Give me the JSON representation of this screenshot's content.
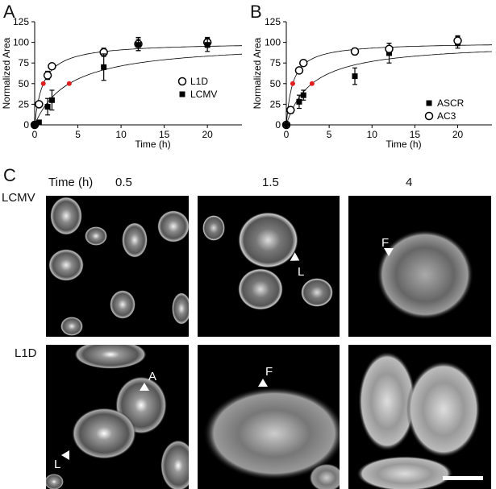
{
  "panels": {
    "a": "A",
    "b": "B",
    "c": "C"
  },
  "chart_data": [
    {
      "type": "scatter",
      "panel": "A",
      "xlabel": "Time (h)",
      "ylabel": "Normalized Area",
      "xlim": [
        0,
        24
      ],
      "ylim": [
        0,
        125
      ],
      "xticks": [
        0,
        5,
        10,
        15,
        20
      ],
      "yticks": [
        0,
        25,
        50,
        75,
        100,
        125
      ],
      "legend": "right",
      "series": [
        {
          "name": "L1D",
          "marker": "open-circle",
          "x": [
            0,
            0.5,
            1.5,
            2,
            8,
            12,
            20
          ],
          "y": [
            0,
            25,
            60,
            71,
            88,
            98,
            100
          ],
          "err": [
            0,
            0,
            5,
            3,
            5,
            8,
            6
          ],
          "fit_half_time": 1
        },
        {
          "name": "LCMV",
          "marker": "filled-square",
          "x": [
            0,
            0.5,
            1.5,
            2,
            8,
            12,
            20
          ],
          "y": [
            0,
            3,
            22,
            30,
            70,
            97,
            97
          ],
          "err": [
            0,
            0,
            10,
            12,
            16,
            7,
            8
          ],
          "fit_half_time": 4
        }
      ],
      "half_points": [
        {
          "x": 1,
          "y": 50
        },
        {
          "x": 4,
          "y": 50
        }
      ],
      "half_color": "#e02020"
    },
    {
      "type": "scatter",
      "panel": "B",
      "xlabel": "Time (h)",
      "ylabel": "Normalized Area",
      "xlim": [
        0,
        24
      ],
      "ylim": [
        0,
        125
      ],
      "xticks": [
        0,
        5,
        10,
        15,
        20
      ],
      "yticks": [
        0,
        25,
        50,
        75,
        100,
        125
      ],
      "legend": "right",
      "series": [
        {
          "name": "ASCR",
          "marker": "filled-square",
          "x": [
            0,
            0.5,
            1.5,
            2,
            8,
            12,
            20
          ],
          "y": [
            0,
            17,
            28,
            36,
            59,
            87,
            100
          ],
          "err": [
            0,
            3,
            8,
            6,
            10,
            12,
            7
          ],
          "fit_half_time": 3
        },
        {
          "name": "AC3",
          "marker": "open-circle",
          "x": [
            0,
            0.5,
            1.5,
            2,
            8,
            12,
            20
          ],
          "y": [
            0,
            18,
            66,
            75,
            89,
            92,
            102
          ],
          "err": [
            0,
            0,
            3,
            3,
            4,
            7,
            6
          ],
          "fit_half_time": 0.75
        }
      ],
      "half_points": [
        {
          "x": 0.75,
          "y": 50
        },
        {
          "x": 3,
          "y": 50
        }
      ],
      "half_color": "#e02020"
    }
  ],
  "figure_c": {
    "time_header": "Time (h)",
    "times": [
      "0.5",
      "1.5",
      "4"
    ],
    "rows": [
      "LCMV",
      "L1D"
    ],
    "annotations": {
      "lcmv_1_5": "L",
      "lcmv_4": "F",
      "l1d_0_5_a": "A",
      "l1d_0_5_l": "L",
      "l1d_1_5": "F"
    }
  }
}
